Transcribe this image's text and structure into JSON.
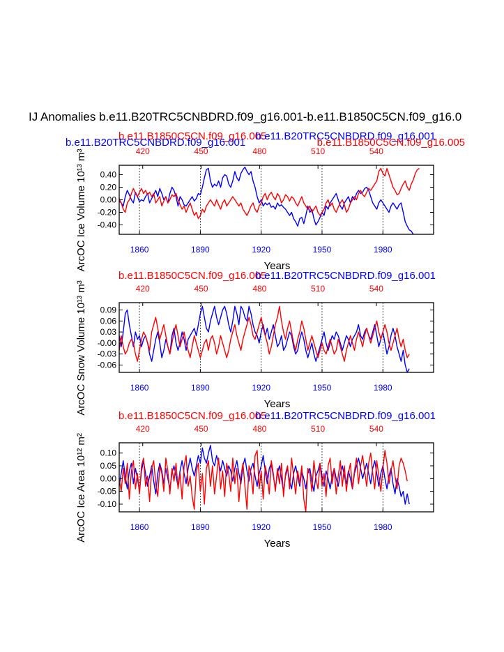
{
  "page_title": "IJ Anomalies b.e11.B20TRC5CNBDRD.f09_g16.001-b.e11.B1850C5CN.f09_g16.0",
  "colors": {
    "red": "#ff0000",
    "blue": "#0000ff",
    "black": "#000000"
  },
  "chart_data": [
    {
      "type": "line",
      "id": "ice-volume",
      "ylabel": "ArcOC Ice Volume 10¹³ m³",
      "ylim": [
        -0.55,
        0.55
      ],
      "yticks": [
        "0.40",
        "0.20",
        "0.00",
        "-0.20",
        "-0.40"
      ],
      "yvals": [
        0.4,
        0.2,
        0.0,
        -0.2,
        -0.4
      ],
      "xlabel": "Years",
      "top_left_label": "b.e11.B1850C5CN.f09_g16.005",
      "top_right_label": "b.e11.B20TRC5CNBDRD.f09_g16.001",
      "extra_left_label": "b.e11.B20TRC5CNBDRD.f09_g16.001",
      "extra_right_label": "b.e11.B1850C5CN.f09_g16.005",
      "bottom_ticks": [
        "1860",
        "1890",
        "1920",
        "1950",
        "1980"
      ],
      "top_ticks": [
        "420",
        "450",
        "480",
        "510",
        "540"
      ],
      "series": [
        {
          "name": "b.e11.B20TRC5CNBDRD.f09_g16.001",
          "color": "blue",
          "x_start": 1850,
          "values": [
            -0.02,
            -0.05,
            -0.1,
            0.05,
            0.15,
            0.08,
            0.0,
            -0.05,
            0.12,
            0.05,
            -0.03,
            0.0,
            -0.02,
            0.05,
            0.1,
            -0.05,
            0.02,
            0.08,
            0.15,
            0.05,
            0.18,
            0.1,
            0.0,
            0.05,
            -0.05,
            0.1,
            0.2,
            0.15,
            0.05,
            -0.1,
            0.05,
            0.0,
            -0.08,
            -0.1,
            -0.05,
            0.0,
            0.05,
            -0.02,
            0.02,
            0.1,
            0.08,
            0.2,
            0.35,
            0.48,
            0.5,
            0.3,
            0.2,
            0.25,
            0.22,
            0.3,
            0.2,
            0.35,
            0.4,
            0.38,
            0.25,
            0.2,
            0.3,
            0.45,
            0.35,
            0.3,
            0.42,
            0.48,
            0.52,
            0.45,
            0.4,
            0.45,
            0.3,
            0.2,
            0.05,
            -0.05,
            0.0,
            -0.1,
            -0.05,
            -0.08,
            -0.05,
            -0.12,
            -0.1,
            -0.15,
            -0.05,
            -0.1,
            -0.08,
            -0.12,
            -0.15,
            -0.2,
            -0.25,
            -0.2,
            -0.3,
            -0.35,
            -0.42,
            -0.3,
            -0.28,
            -0.38,
            -0.25,
            -0.1,
            -0.2,
            -0.15,
            -0.3,
            -0.4,
            -0.35,
            -0.28,
            -0.2,
            -0.25,
            -0.1,
            -0.15,
            -0.05,
            0.0,
            0.05,
            0.1,
            0.0,
            -0.1,
            -0.15,
            -0.05,
            0.0,
            0.05,
            -0.05,
            0.05,
            0.0,
            0.1,
            0.15,
            0.1,
            0.12,
            0.18,
            0.2,
            0.15,
            0.05,
            -0.05,
            -0.1,
            -0.15,
            -0.05,
            0.0,
            -0.05,
            -0.1,
            -0.15,
            -0.2,
            -0.1,
            -0.05,
            -0.1,
            -0.15,
            -0.08,
            -0.05,
            -0.2,
            -0.35,
            -0.42,
            -0.48,
            -0.5,
            -0.55
          ]
        },
        {
          "name": "b.e11.B1850C5CN.f09_g16.005",
          "color": "red",
          "x_start": 1850,
          "values": [
            0.02,
            -0.05,
            -0.15,
            -0.2,
            -0.05,
            0.0,
            0.1,
            0.18,
            0.1,
            0.05,
            0.12,
            0.18,
            0.1,
            0.15,
            0.08,
            0.12,
            0.05,
            0.1,
            -0.05,
            0.0,
            0.05,
            -0.1,
            -0.02,
            0.05,
            -0.05,
            0.0,
            0.08,
            0.05,
            0.1,
            0.0,
            -0.08,
            -0.15,
            -0.1,
            -0.2,
            -0.12,
            -0.05,
            -0.15,
            -0.25,
            -0.2,
            -0.3,
            -0.25,
            -0.15,
            -0.2,
            -0.1,
            -0.05,
            0.0,
            -0.05,
            -0.1,
            0.0,
            -0.08,
            -0.15,
            -0.05,
            0.0,
            -0.1,
            -0.05,
            0.0,
            0.05,
            0.0,
            -0.05,
            -0.1,
            -0.05,
            -0.15,
            -0.2,
            -0.25,
            -0.18,
            -0.1,
            -0.05,
            -0.15,
            -0.2,
            -0.1,
            -0.05,
            0.05,
            0.1,
            0.0,
            0.08,
            0.12,
            0.05,
            0.0,
            0.1,
            0.05,
            -0.05,
            0.0,
            0.08,
            0.05,
            -0.02,
            0.05,
            0.02,
            -0.05,
            -0.1,
            -0.02,
            0.05,
            -0.05,
            -0.1,
            -0.15,
            -0.1,
            -0.2,
            -0.15,
            -0.1,
            -0.2,
            -0.25,
            -0.2,
            -0.15,
            -0.05,
            0.0,
            -0.1,
            -0.05,
            -0.15,
            -0.2,
            -0.12,
            -0.05,
            0.0,
            -0.08,
            -0.2,
            -0.15,
            -0.05,
            0.0,
            0.05,
            0.0,
            0.1,
            0.15,
            0.08,
            0.05,
            0.12,
            0.18,
            0.15,
            0.2,
            0.25,
            0.3,
            0.45,
            0.5,
            0.42,
            0.38,
            0.5,
            0.4,
            0.3,
            0.2,
            0.15,
            0.08,
            0.1,
            0.18,
            0.25,
            0.3,
            0.2,
            0.15,
            0.25,
            0.32,
            0.42,
            0.48,
            0.5
          ]
        }
      ]
    },
    {
      "type": "line",
      "id": "snow-volume",
      "ylabel": "ArcOC Snow Volume 10¹³ m³",
      "ylim": [
        -0.08,
        0.11
      ],
      "yticks": [
        "0.09",
        "0.06",
        "0.03",
        "-0.00",
        "-0.03",
        "-0.06"
      ],
      "yvals": [
        0.09,
        0.06,
        0.03,
        0.0,
        -0.03,
        -0.06
      ],
      "xlabel": "Years",
      "top_left_label": "b.e11.B1850C5CN.f09_g16.005",
      "top_right_label": "b.e11.B20TRC5CNBDRD.f09_g16.001",
      "bottom_ticks": [
        "1860",
        "1890",
        "1920",
        "1950",
        "1980"
      ],
      "top_ticks": [
        "420",
        "450",
        "480",
        "510",
        "540"
      ],
      "series": [
        {
          "name": "b.e11.B20TRC5CNBDRD.f09_g16.001",
          "color": "blue",
          "x_start": 1850,
          "values": [
            0.02,
            -0.01,
            0.03,
            0.08,
            0.09,
            0.05,
            0.02,
            -0.01,
            0.03,
            0.01,
            0.02,
            -0.01,
            0.01,
            0.02,
            0.0,
            -0.03,
            -0.05,
            -0.02,
            0.01,
            0.03,
            0.0,
            -0.04,
            -0.02,
            0.01,
            -0.01,
            -0.03,
            0.02,
            0.04,
            0.0,
            -0.02,
            0.0,
            0.03,
            0.01,
            -0.02,
            0.01,
            0.02,
            0.03,
            0.04,
            0.02,
            0.05,
            0.08,
            0.1,
            0.07,
            0.04,
            0.03,
            0.06,
            0.08,
            0.1,
            0.07,
            0.05,
            0.07,
            0.09,
            0.1,
            0.08,
            0.05,
            0.03,
            0.06,
            0.1,
            0.08,
            0.05,
            0.1,
            0.09,
            0.07,
            0.06,
            0.1,
            0.08,
            0.05,
            0.03,
            0.02,
            0.0,
            0.03,
            0.05,
            0.02,
            0.04,
            0.01,
            0.03,
            0.05,
            0.02,
            -0.01,
            0.0,
            0.02,
            -0.02,
            -0.01,
            0.01,
            0.03,
            0.02,
            -0.01,
            -0.03,
            -0.02,
            0.01,
            0.03,
            0.01,
            -0.02,
            -0.04,
            -0.02,
            0.0,
            -0.03,
            -0.05,
            -0.03,
            -0.01,
            0.01,
            0.03,
            0.0,
            -0.02,
            0.0,
            0.02,
            0.01,
            0.03,
            0.02,
            0.0,
            -0.02,
            0.0,
            0.02,
            0.01,
            -0.01,
            0.01,
            0.02,
            0.03,
            0.05,
            0.02,
            0.01,
            0.03,
            0.04,
            0.02,
            0.01,
            0.03,
            0.05,
            0.02,
            -0.01,
            0.01,
            0.03,
            0.0,
            -0.03,
            -0.01,
            0.02,
            0.04,
            0.02,
            -0.01,
            -0.03,
            -0.05,
            -0.02,
            -0.06,
            -0.08,
            -0.07
          ]
        },
        {
          "name": "b.e11.B1850C5CN.f09_g16.005",
          "color": "red",
          "x_start": 1850,
          "values": [
            -0.02,
            0.02,
            -0.01,
            -0.03,
            -0.02,
            0.0,
            0.01,
            0.0,
            -0.03,
            -0.05,
            -0.02,
            0.01,
            0.03,
            0.02,
            0.0,
            -0.02,
            0.03,
            0.05,
            0.07,
            0.04,
            0.01,
            0.03,
            0.05,
            0.02,
            -0.01,
            -0.03,
            0.0,
            0.03,
            0.05,
            0.02,
            -0.01,
            0.01,
            0.03,
            0.0,
            -0.02,
            -0.04,
            -0.01,
            0.02,
            0.0,
            -0.02,
            -0.04,
            -0.02,
            0.0,
            0.01,
            -0.02,
            0.01,
            0.02,
            0.0,
            -0.03,
            -0.01,
            0.02,
            0.0,
            -0.02,
            -0.04,
            -0.02,
            0.01,
            0.03,
            0.05,
            0.02,
            0.0,
            -0.02,
            0.01,
            0.03,
            0.05,
            0.07,
            0.05,
            0.02,
            0.01,
            0.03,
            0.05,
            0.07,
            0.04,
            0.02,
            0.0,
            -0.03,
            -0.01,
            0.02,
            0.05,
            0.07,
            0.1,
            0.06,
            0.03,
            0.01,
            0.04,
            0.06,
            0.03,
            0.0,
            -0.02,
            0.01,
            0.03,
            0.06,
            0.04,
            0.01,
            -0.02,
            0.0,
            0.02,
            0.0,
            -0.02,
            -0.04,
            -0.02,
            0.0,
            -0.02,
            -0.03,
            -0.01,
            0.01,
            -0.01,
            -0.03,
            -0.02,
            0.01,
            -0.01,
            -0.03,
            -0.05,
            -0.02,
            0.0,
            0.02,
            0.0,
            -0.02,
            0.01,
            0.03,
            0.01,
            -0.01,
            0.02,
            0.04,
            0.02,
            0.0,
            0.02,
            0.04,
            0.06,
            0.03,
            0.01,
            0.03,
            0.05,
            0.03,
            0.0,
            -0.02,
            0.0,
            0.02,
            0.04,
            0.01,
            -0.01,
            0.01,
            -0.02,
            -0.04,
            -0.03
          ]
        }
      ]
    },
    {
      "type": "line",
      "id": "ice-area",
      "ylabel": "ArcOC Ice Area 10¹² m²",
      "ylim": [
        -0.13,
        0.14
      ],
      "yticks": [
        "0.10",
        "0.05",
        "0.00",
        "-0.05",
        "-0.10"
      ],
      "yvals": [
        0.1,
        0.05,
        0.0,
        -0.05,
        -0.1
      ],
      "xlabel": "Years",
      "top_left_label": "b.e11.B1850C5CN.f09_g16.005",
      "top_right_label": "b.e11.B20TRC5CNBDRD.f09_g16.001",
      "bottom_ticks": [
        "1860",
        "1890",
        "1920",
        "1950",
        "1980"
      ],
      "top_ticks": [
        "420",
        "450",
        "480",
        "510",
        "540"
      ],
      "series": [
        {
          "name": "b.e11.B20TRC5CNBDRD.f09_g16.001",
          "color": "blue",
          "x_start": 1850,
          "values": [
            -0.03,
            0.02,
            0.07,
            0.01,
            -0.04,
            0.03,
            0.06,
            -0.02,
            0.04,
            0.0,
            -0.05,
            0.03,
            0.07,
            0.02,
            -0.03,
            0.01,
            0.05,
            -0.01,
            -0.06,
            0.02,
            0.06,
            0.03,
            -0.02,
            0.04,
            0.0,
            -0.04,
            0.02,
            0.05,
            0.01,
            -0.03,
            0.03,
            0.07,
            0.02,
            -0.02,
            0.04,
            0.08,
            0.04,
            0.01,
            0.05,
            0.09,
            0.06,
            0.12,
            0.08,
            0.06,
            0.1,
            0.13,
            0.07,
            0.05,
            0.09,
            0.06,
            0.03,
            0.07,
            0.04,
            0.01,
            0.05,
            0.03,
            -0.01,
            0.04,
            0.07,
            0.02,
            -0.02,
            0.05,
            0.08,
            0.03,
            -0.01,
            0.04,
            0.06,
            0.01,
            -0.03,
            0.02,
            0.05,
            0.09,
            0.03,
            -0.02,
            0.04,
            0.06,
            0.01,
            -0.04,
            0.02,
            0.05,
            0.0,
            -0.05,
            0.01,
            0.04,
            -0.01,
            -0.04,
            0.02,
            0.05,
            0.01,
            -0.03,
            0.03,
            0.0,
            -0.04,
            0.02,
            0.04,
            -0.01,
            -0.05,
            0.01,
            0.03,
            0.06,
            0.01,
            -0.03,
            0.03,
            0.0,
            -0.04,
            0.01,
            0.04,
            0.0,
            -0.03,
            0.02,
            0.05,
            0.01,
            -0.02,
            0.03,
            0.0,
            -0.04,
            0.02,
            0.05,
            0.08,
            0.04,
            0.0,
            0.03,
            0.06,
            0.02,
            -0.02,
            0.04,
            0.07,
            0.02,
            -0.03,
            0.02,
            0.05,
            0.0,
            -0.04,
            0.01,
            0.04,
            -0.02,
            -0.06,
            0.0,
            -0.03,
            -0.07,
            -0.05,
            -0.1,
            -0.06,
            -0.1
          ]
        },
        {
          "name": "b.e11.B1850C5CN.f09_g16.005",
          "color": "red",
          "x_start": 1850,
          "values": [
            0.0,
            -0.05,
            0.04,
            -0.02,
            0.06,
            -0.08,
            0.03,
            0.07,
            -0.04,
            0.02,
            -0.06,
            0.05,
            0.08,
            -0.03,
            0.01,
            -0.09,
            0.04,
            0.07,
            -0.02,
            -0.07,
            0.05,
            0.02,
            -0.05,
            0.08,
            0.03,
            -0.06,
            0.04,
            -0.01,
            0.06,
            -0.04,
            0.02,
            -0.08,
            0.05,
            0.09,
            -0.03,
            0.01,
            -0.07,
            -0.12,
            0.03,
            0.06,
            -0.05,
            0.02,
            -0.1,
            0.04,
            0.07,
            -0.03,
            0.05,
            -0.06,
            0.01,
            0.08,
            -0.04,
            0.03,
            -0.07,
            0.06,
            0.02,
            -0.05,
            0.08,
            -0.02,
            0.04,
            -0.09,
            0.01,
            0.06,
            -0.03,
            -0.12,
            0.05,
            0.02,
            -0.06,
            0.09,
            0.11,
            -0.04,
            0.03,
            -0.08,
            0.05,
            0.01,
            -0.06,
            0.07,
            0.02,
            -0.05,
            0.04,
            -0.02,
            0.06,
            -0.07,
            0.02,
            0.05,
            -0.04,
            0.08,
            0.01,
            -0.06,
            0.03,
            -0.02,
            0.05,
            -0.08,
            -0.13,
            0.04,
            0.02,
            -0.05,
            0.07,
            0.0,
            -0.04,
            0.06,
            -0.03,
            0.02,
            -0.07,
            0.05,
            0.08,
            -0.02,
            0.04,
            -0.06,
            0.01,
            0.07,
            -0.03,
            0.05,
            -0.05,
            0.02,
            0.06,
            -0.04,
            0.03,
            0.08,
            -0.02,
            0.05,
            0.09,
            0.03,
            -0.03,
            0.06,
            0.1,
            0.02,
            -0.04,
            0.07,
            0.01,
            -0.05,
            0.04,
            0.11,
            0.06,
            -0.02,
            0.03,
            0.07,
            0.01,
            -0.04,
            0.05,
            0.08,
            0.06,
            0.03,
            -0.01
          ]
        }
      ]
    }
  ]
}
